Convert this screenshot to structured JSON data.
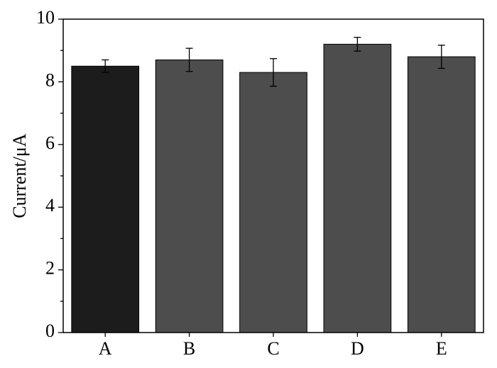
{
  "chart_data": {
    "type": "bar",
    "categories": [
      "A",
      "B",
      "C",
      "D",
      "E"
    ],
    "values": [
      8.5,
      8.7,
      8.3,
      9.2,
      8.8
    ],
    "errors": [
      0.2,
      0.37,
      0.44,
      0.22,
      0.37
    ],
    "colors": [
      "#1c1c1c",
      "#4d4d4d",
      "#4d4d4d",
      "#4d4d4d",
      "#4d4d4d"
    ],
    "y_label": "Current/μA",
    "ylim": [
      0,
      10
    ],
    "yticks": [
      0,
      2,
      4,
      6,
      8,
      10
    ],
    "yminorticks": [
      1,
      3,
      5,
      7,
      9
    ]
  }
}
